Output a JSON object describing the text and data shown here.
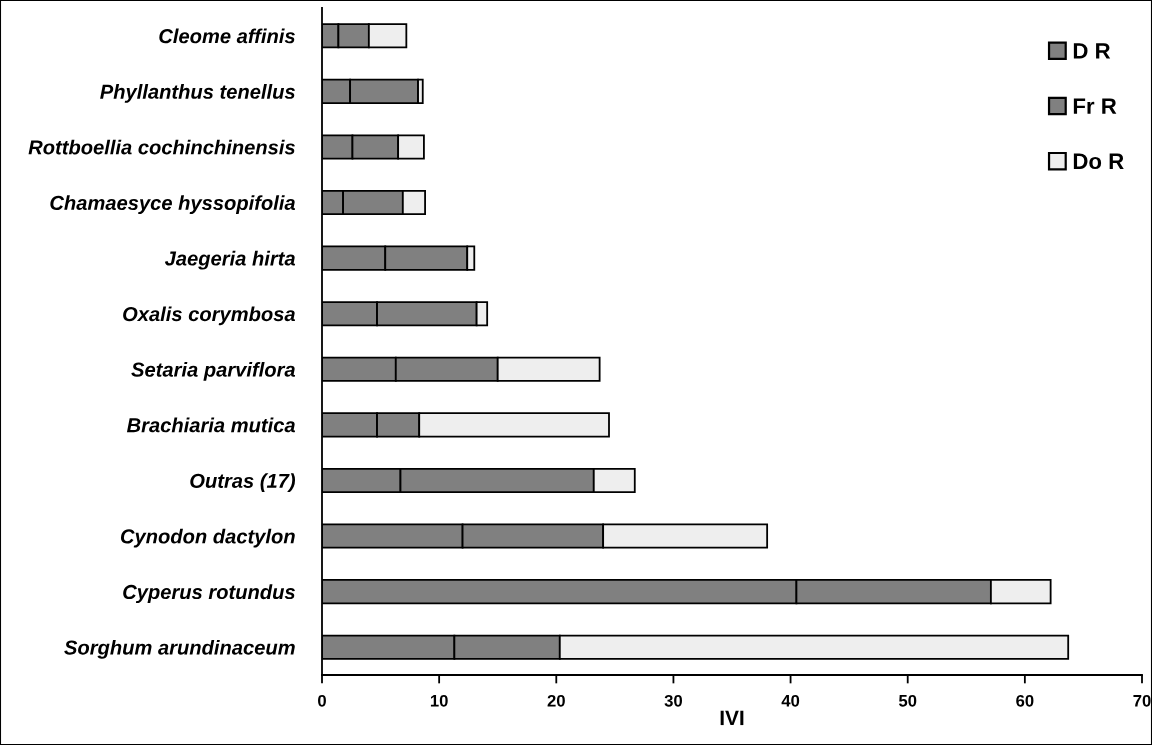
{
  "chart_data": {
    "type": "bar",
    "orientation": "horizontal",
    "stacked": true,
    "categories": [
      "Cleome affinis",
      "Phyllanthus tenellus",
      "Rottboellia cochinchinensis",
      "Chamaesyce hyssopifolia",
      "Jaegeria hirta",
      "Oxalis corymbosa",
      "Setaria parviflora",
      "Brachiaria mutica",
      "Outras (17)",
      "Cynodon dactylon",
      "Cyperus rotundus",
      "Sorghum arundinaceum"
    ],
    "series": [
      {
        "name": "D R",
        "color": "#808080",
        "values": [
          1.4,
          2.4,
          2.6,
          1.8,
          5.4,
          4.7,
          6.3,
          4.7,
          6.7,
          12.0,
          40.5,
          11.3
        ]
      },
      {
        "name": "Fr R",
        "color": "#808080",
        "values": [
          2.6,
          5.8,
          3.9,
          5.1,
          7.0,
          8.5,
          8.7,
          3.6,
          16.5,
          12.0,
          16.6,
          9.0
        ]
      },
      {
        "name": "Do R",
        "color": "#eeeeee",
        "values": [
          3.2,
          0.4,
          2.2,
          1.9,
          0.6,
          0.9,
          8.7,
          16.2,
          3.5,
          14.0,
          5.1,
          43.4
        ]
      }
    ],
    "xlim": [
      0,
      70
    ],
    "xticks": [
      0,
      10,
      20,
      30,
      40,
      50,
      60,
      70
    ],
    "xlabel": "IVI",
    "legend": "top right"
  }
}
